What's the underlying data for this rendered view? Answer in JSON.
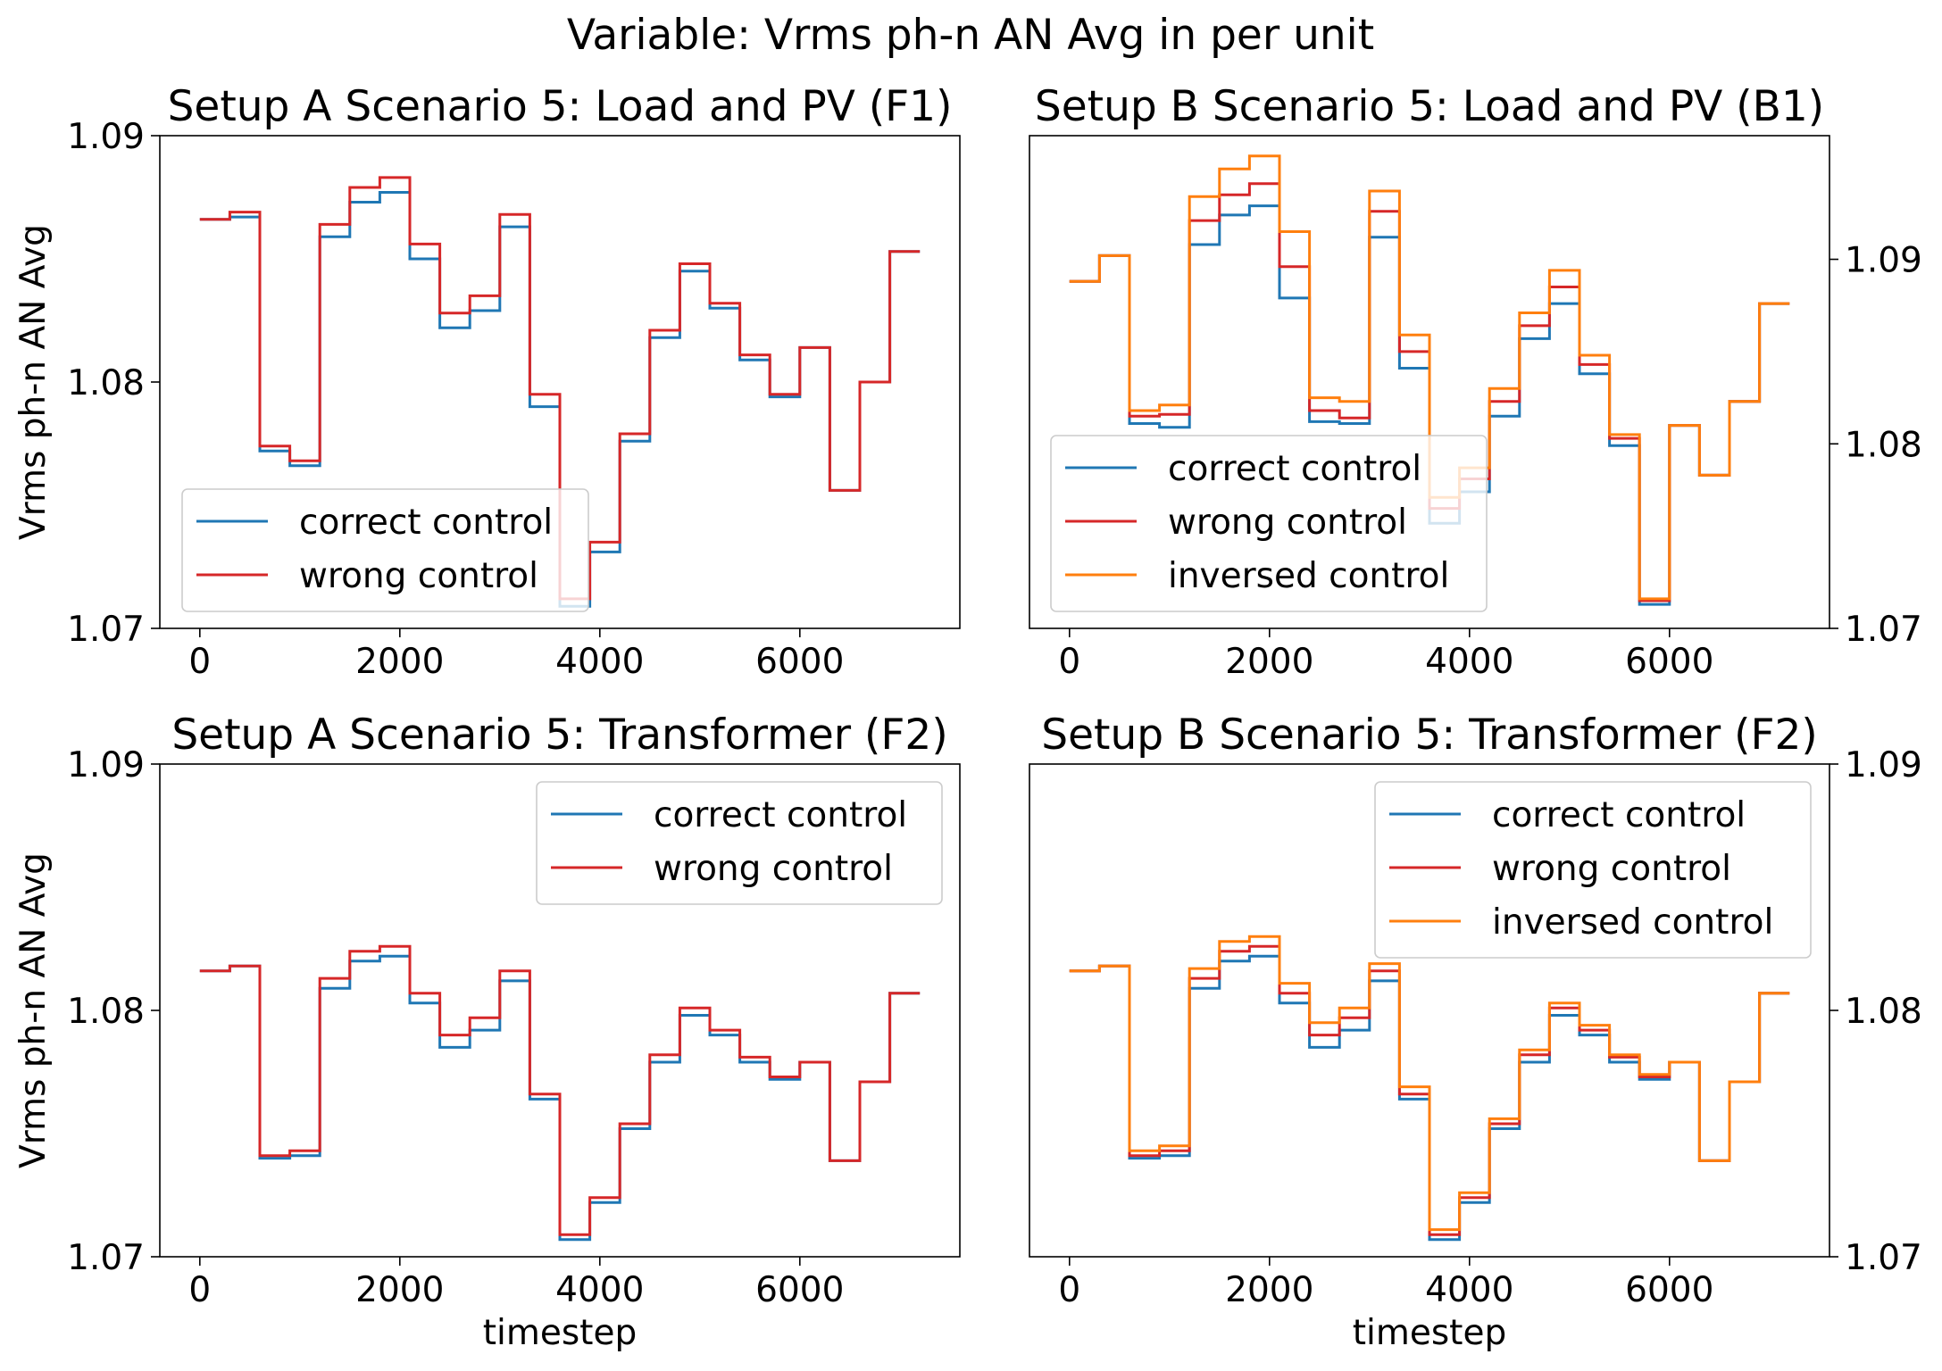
{
  "figure": {
    "suptitle": "Variable: Vrms ph-n AN Avg in per unit"
  },
  "colors": {
    "correct control": "#1f77b4",
    "wrong control": "#d62728",
    "inversed control": "#ff7f0e"
  },
  "chart_data": [
    {
      "type": "line",
      "drawstyle": "steps-post",
      "title": "Setup A Scenario 5: Load and PV (F1)",
      "xlabel": "",
      "ylabel": "Vrms ph-n AN Avg",
      "xlim": [
        -400,
        7600
      ],
      "ylim": [
        1.07,
        1.09
      ],
      "xticks": [
        0,
        2000,
        4000,
        6000
      ],
      "xticklabels": [
        "0",
        "2000",
        "4000",
        "6000"
      ],
      "yticks": [
        1.07,
        1.08,
        1.09
      ],
      "yticklabels": [
        "1.07",
        "1.08",
        "1.09"
      ],
      "yaxis_side": "left",
      "legend_loc": "lower left",
      "x": [
        0,
        300,
        600,
        900,
        1200,
        1500,
        1800,
        2100,
        2400,
        2700,
        3000,
        3300,
        3600,
        3900,
        4200,
        4500,
        4800,
        5100,
        5400,
        5700,
        6000,
        6300,
        6600,
        6900,
        7200
      ],
      "series": [
        {
          "name": "correct control",
          "values": [
            1.0866,
            1.0867,
            1.0772,
            1.0766,
            1.0859,
            1.0873,
            1.0877,
            1.085,
            1.0822,
            1.0829,
            1.0863,
            1.079,
            1.0709,
            1.0731,
            1.0776,
            1.0818,
            1.0845,
            1.083,
            1.0809,
            1.0794,
            1.0814,
            1.0756,
            1.08,
            1.0853,
            1.0853
          ]
        },
        {
          "name": "wrong control",
          "values": [
            1.0866,
            1.0869,
            1.0774,
            1.0768,
            1.0864,
            1.0879,
            1.0883,
            1.0856,
            1.0828,
            1.0835,
            1.0868,
            1.0795,
            1.0712,
            1.0735,
            1.0779,
            1.0821,
            1.0848,
            1.0832,
            1.0811,
            1.0795,
            1.0814,
            1.0756,
            1.08,
            1.0853,
            1.0853
          ]
        }
      ]
    },
    {
      "type": "line",
      "drawstyle": "steps-post",
      "title": "Setup B Scenario 5: Load and PV (B1)",
      "xlabel": "",
      "ylabel": "",
      "xlim": [
        -400,
        7600
      ],
      "ylim": [
        1.07,
        1.0967
      ],
      "xticks": [
        0,
        2000,
        4000,
        6000
      ],
      "xticklabels": [
        "0",
        "2000",
        "4000",
        "6000"
      ],
      "yticks": [
        1.07,
        1.08,
        1.09
      ],
      "yticklabels": [
        "1.07",
        "1.08",
        "1.09"
      ],
      "yaxis_side": "right",
      "legend_loc": "lower left",
      "x": [
        0,
        300,
        600,
        900,
        1200,
        1500,
        1800,
        2100,
        2400,
        2700,
        3000,
        3300,
        3600,
        3900,
        4200,
        4500,
        4800,
        5100,
        5400,
        5700,
        6000,
        6300,
        6600,
        6900,
        7200
      ],
      "series": [
        {
          "name": "correct control",
          "values": [
            1.0888,
            1.0902,
            1.0811,
            1.0809,
            1.0908,
            1.0924,
            1.0929,
            1.0879,
            1.0812,
            1.0811,
            1.0912,
            1.0841,
            1.0757,
            1.0774,
            1.0815,
            1.0857,
            1.0876,
            1.0838,
            1.0799,
            1.0713,
            1.081,
            1.0783,
            1.0823,
            1.0876,
            1.0876
          ]
        },
        {
          "name": "wrong control",
          "values": [
            1.0888,
            1.0902,
            1.0815,
            1.0816,
            1.0921,
            1.0935,
            1.0941,
            1.0896,
            1.0818,
            1.0814,
            1.0926,
            1.085,
            1.0765,
            1.0781,
            1.0823,
            1.0864,
            1.0885,
            1.0843,
            1.0803,
            1.0715,
            1.081,
            1.0783,
            1.0823,
            1.0876,
            1.0876
          ]
        },
        {
          "name": "inversed control",
          "values": [
            1.0888,
            1.0902,
            1.0818,
            1.0821,
            1.0934,
            1.0949,
            1.0956,
            1.0915,
            1.0825,
            1.0823,
            1.0937,
            1.0859,
            1.0771,
            1.0787,
            1.083,
            1.0871,
            1.0894,
            1.0848,
            1.0805,
            1.0716,
            1.081,
            1.0783,
            1.0823,
            1.0876,
            1.0876
          ]
        }
      ]
    },
    {
      "type": "line",
      "drawstyle": "steps-post",
      "title": "Setup A Scenario 5: Transformer (F2)",
      "xlabel": "timestep",
      "ylabel": "Vrms ph-n AN Avg",
      "xlim": [
        -400,
        7600
      ],
      "ylim": [
        1.07,
        1.09
      ],
      "xticks": [
        0,
        2000,
        4000,
        6000
      ],
      "xticklabels": [
        "0",
        "2000",
        "4000",
        "6000"
      ],
      "yticks": [
        1.07,
        1.08,
        1.09
      ],
      "yticklabels": [
        "1.07",
        "1.08",
        "1.09"
      ],
      "yaxis_side": "left",
      "legend_loc": "upper right",
      "x": [
        0,
        300,
        600,
        900,
        1200,
        1500,
        1800,
        2100,
        2400,
        2700,
        3000,
        3300,
        3600,
        3900,
        4200,
        4500,
        4800,
        5100,
        5400,
        5700,
        6000,
        6300,
        6600,
        6900,
        7200
      ],
      "series": [
        {
          "name": "correct control",
          "values": [
            1.0816,
            1.0818,
            1.074,
            1.0741,
            1.0809,
            1.082,
            1.0822,
            1.0803,
            1.0785,
            1.0792,
            1.0812,
            1.0764,
            1.0707,
            1.0722,
            1.0752,
            1.0779,
            1.0798,
            1.079,
            1.0779,
            1.0772,
            1.0779,
            1.0739,
            1.0771,
            1.0807,
            1.0807
          ]
        },
        {
          "name": "wrong control",
          "values": [
            1.0816,
            1.0818,
            1.0741,
            1.0743,
            1.0813,
            1.0824,
            1.0826,
            1.0807,
            1.079,
            1.0797,
            1.0816,
            1.0766,
            1.0709,
            1.0724,
            1.0754,
            1.0782,
            1.0801,
            1.0792,
            1.0781,
            1.0773,
            1.0779,
            1.0739,
            1.0771,
            1.0807,
            1.0807
          ]
        }
      ]
    },
    {
      "type": "line",
      "drawstyle": "steps-post",
      "title": "Setup B Scenario 5: Transformer (F2)",
      "xlabel": "timestep",
      "ylabel": "",
      "xlim": [
        -400,
        7600
      ],
      "ylim": [
        1.07,
        1.09
      ],
      "xticks": [
        0,
        2000,
        4000,
        6000
      ],
      "xticklabels": [
        "0",
        "2000",
        "4000",
        "6000"
      ],
      "yticks": [
        1.07,
        1.08,
        1.09
      ],
      "yticklabels": [
        "1.07",
        "1.08",
        "1.09"
      ],
      "yaxis_side": "right",
      "legend_loc": "upper right",
      "x": [
        0,
        300,
        600,
        900,
        1200,
        1500,
        1800,
        2100,
        2400,
        2700,
        3000,
        3300,
        3600,
        3900,
        4200,
        4500,
        4800,
        5100,
        5400,
        5700,
        6000,
        6300,
        6600,
        6900,
        7200
      ],
      "series": [
        {
          "name": "correct control",
          "values": [
            1.0816,
            1.0818,
            1.074,
            1.0741,
            1.0809,
            1.082,
            1.0822,
            1.0803,
            1.0785,
            1.0792,
            1.0812,
            1.0764,
            1.0707,
            1.0722,
            1.0752,
            1.0779,
            1.0798,
            1.079,
            1.0779,
            1.0772,
            1.0779,
            1.0739,
            1.0771,
            1.0807,
            1.0807
          ]
        },
        {
          "name": "wrong control",
          "values": [
            1.0816,
            1.0818,
            1.0741,
            1.0743,
            1.0813,
            1.0824,
            1.0826,
            1.0807,
            1.079,
            1.0797,
            1.0816,
            1.0766,
            1.0709,
            1.0724,
            1.0754,
            1.0782,
            1.0801,
            1.0792,
            1.0781,
            1.0773,
            1.0779,
            1.0739,
            1.0771,
            1.0807,
            1.0807
          ]
        },
        {
          "name": "inversed control",
          "values": [
            1.0816,
            1.0818,
            1.0743,
            1.0745,
            1.0817,
            1.0828,
            1.083,
            1.0811,
            1.0795,
            1.0801,
            1.0819,
            1.0769,
            1.0711,
            1.0726,
            1.0756,
            1.0784,
            1.0803,
            1.0794,
            1.0782,
            1.0774,
            1.0779,
            1.0739,
            1.0771,
            1.0807,
            1.0807
          ]
        }
      ]
    }
  ]
}
